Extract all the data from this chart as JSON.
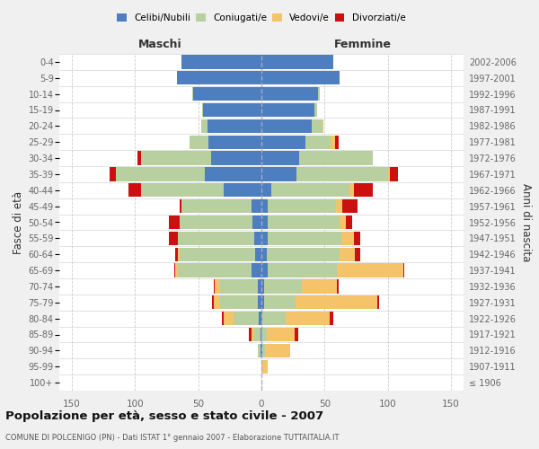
{
  "age_groups": [
    "100+",
    "95-99",
    "90-94",
    "85-89",
    "80-84",
    "75-79",
    "70-74",
    "65-69",
    "60-64",
    "55-59",
    "50-54",
    "45-49",
    "40-44",
    "35-39",
    "30-34",
    "25-29",
    "20-24",
    "15-19",
    "10-14",
    "5-9",
    "0-4"
  ],
  "birth_years": [
    "≤ 1906",
    "1907-1911",
    "1912-1916",
    "1917-1921",
    "1922-1926",
    "1927-1931",
    "1932-1936",
    "1937-1941",
    "1942-1946",
    "1947-1951",
    "1952-1956",
    "1957-1961",
    "1962-1966",
    "1967-1971",
    "1972-1976",
    "1977-1981",
    "1982-1986",
    "1987-1991",
    "1992-1996",
    "1997-2001",
    "2002-2006"
  ],
  "maschi": {
    "celibi": [
      0,
      0,
      1,
      1,
      2,
      3,
      3,
      8,
      5,
      6,
      7,
      8,
      30,
      45,
      40,
      42,
      43,
      46,
      54,
      67,
      63
    ],
    "coniugati": [
      0,
      0,
      2,
      5,
      20,
      30,
      30,
      58,
      60,
      60,
      58,
      55,
      65,
      70,
      55,
      15,
      5,
      1,
      1,
      0,
      0
    ],
    "vedovi": [
      0,
      0,
      0,
      2,
      8,
      5,
      4,
      2,
      1,
      0,
      0,
      0,
      0,
      0,
      0,
      0,
      0,
      0,
      0,
      0,
      0
    ],
    "divorziati": [
      0,
      0,
      0,
      2,
      1,
      1,
      1,
      1,
      2,
      7,
      8,
      2,
      10,
      5,
      3,
      0,
      0,
      0,
      0,
      0,
      0
    ]
  },
  "femmine": {
    "nubili": [
      0,
      0,
      1,
      0,
      1,
      2,
      2,
      5,
      4,
      5,
      5,
      5,
      8,
      28,
      30,
      35,
      40,
      42,
      45,
      62,
      57
    ],
    "coniugate": [
      0,
      0,
      2,
      4,
      18,
      25,
      30,
      55,
      58,
      58,
      57,
      54,
      62,
      72,
      58,
      20,
      8,
      2,
      1,
      0,
      0
    ],
    "vedove": [
      0,
      5,
      20,
      22,
      35,
      65,
      28,
      52,
      12,
      10,
      5,
      5,
      3,
      2,
      0,
      3,
      1,
      0,
      0,
      0,
      0
    ],
    "divorziate": [
      0,
      0,
      0,
      3,
      3,
      1,
      1,
      1,
      4,
      5,
      5,
      12,
      15,
      6,
      0,
      3,
      0,
      0,
      0,
      0,
      0
    ]
  },
  "colors": {
    "celibi": "#4d7ebf",
    "coniugati": "#b8cfa0",
    "vedovi": "#f5c36a",
    "divorziati": "#cc1010"
  },
  "title": "Popolazione per età, sesso e stato civile - 2007",
  "subtitle": "COMUNE DI POLCENIGO (PN) - Dati ISTAT 1° gennaio 2007 - Elaborazione TUTTAITALIA.IT",
  "xlabel_maschi": "Maschi",
  "xlabel_femmine": "Femmine",
  "ylabel_left": "Fasce di età",
  "ylabel_right": "Anni di nascita",
  "xlim": 160,
  "bg_color": "#f0f0f0",
  "plot_bg_color": "#ffffff",
  "grid_color": "#cccccc"
}
